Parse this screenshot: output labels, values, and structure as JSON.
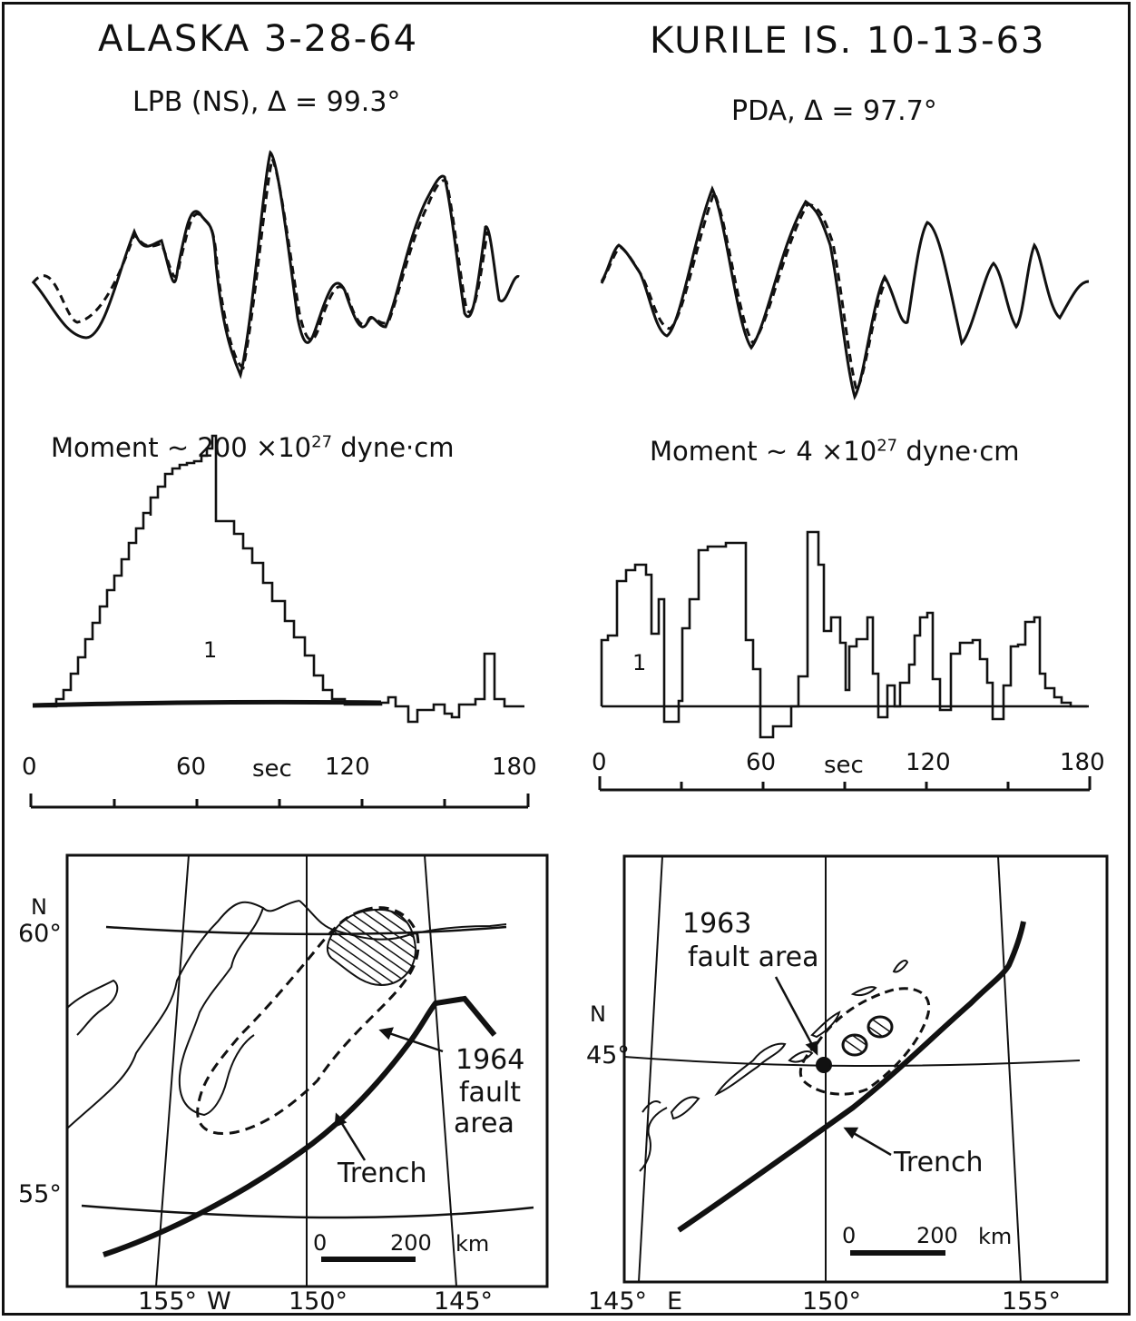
{
  "left": {
    "title": "ALASKA  3-28-64",
    "station": "LPB (NS),  Δ = 99.3°",
    "moment_prefix": "Moment ~ 200  ×10",
    "moment_exp": "27",
    "moment_suffix": " dyne·cm",
    "step_label": "1",
    "axis": {
      "ticks": [
        "0",
        "60",
        "sec",
        "120",
        "180"
      ]
    },
    "map": {
      "lat_labels": [
        "N",
        "60°",
        "55°"
      ],
      "lon_labels": [
        "155°",
        "W",
        "150°",
        "145°"
      ],
      "fault_label": [
        "1964",
        "fault",
        "area"
      ],
      "trench_label": "Trench",
      "scale": [
        "0",
        "200",
        "km"
      ]
    }
  },
  "right": {
    "title": "KURILE IS.  10-13-63",
    "station": "PDA, Δ = 97.7°",
    "moment_prefix": "Moment ~ 4 ×10",
    "moment_exp": "27",
    "moment_suffix": " dyne·cm",
    "step_label": "1",
    "axis": {
      "ticks": [
        "0",
        "60",
        "sec",
        "120",
        "180"
      ]
    },
    "map": {
      "lat_labels": [
        "N",
        "45°"
      ],
      "lon_labels": [
        "145°",
        "E",
        "150°",
        "155°"
      ],
      "fault_label": [
        "1963",
        "fault area"
      ],
      "trench_label": "Trench",
      "scale": [
        "0",
        "200",
        "km"
      ]
    }
  },
  "colors": {
    "ink": "#111111",
    "paper": "#ffffff"
  }
}
